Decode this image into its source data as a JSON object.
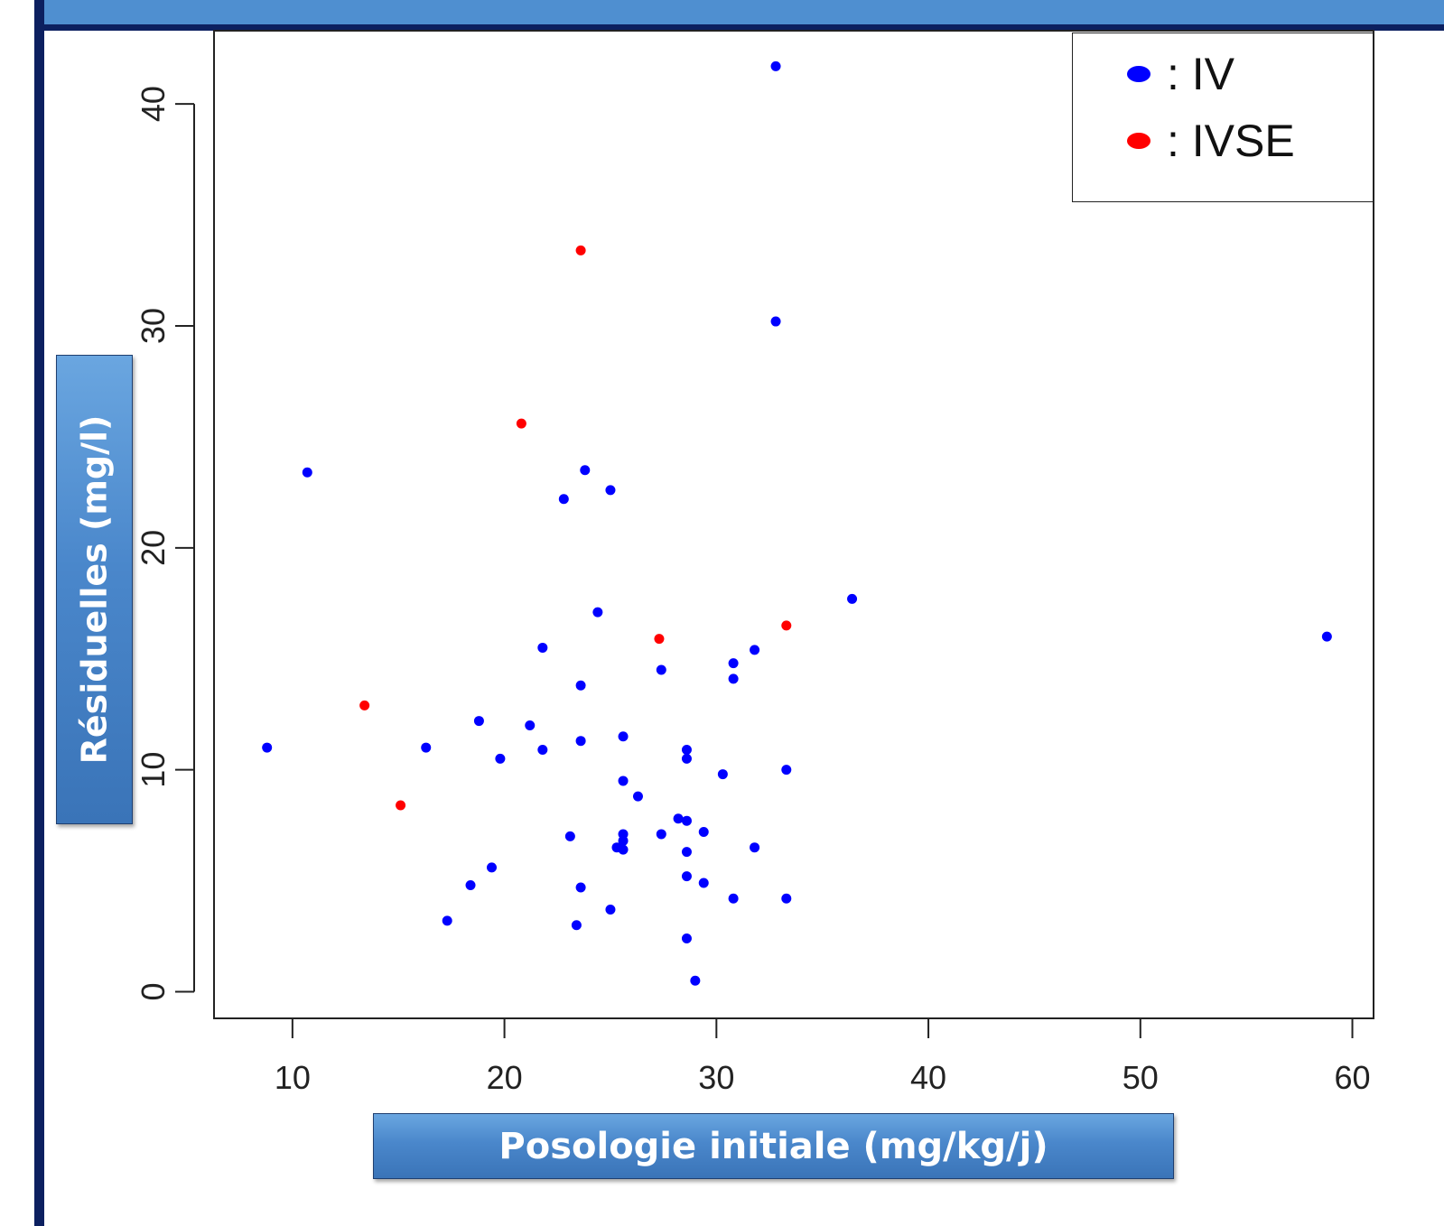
{
  "chart_data": {
    "type": "scatter",
    "xlabel": "Posologie initiale (mg/kg/j)",
    "ylabel": "Résiduelles (mg/l)",
    "xlim": [
      6.3,
      61
    ],
    "ylim": [
      -1.2,
      43.3
    ],
    "xticks": [
      10,
      20,
      30,
      40,
      50,
      60
    ],
    "yticks": [
      0,
      10,
      20,
      30,
      40
    ],
    "grid": false,
    "legend_position": "top-right",
    "series": [
      {
        "name": ": IV",
        "color": "#0000ff",
        "points": [
          [
            32.8,
            41.7
          ],
          [
            32.8,
            30.2
          ],
          [
            10.7,
            23.4
          ],
          [
            23.8,
            23.5
          ],
          [
            25.0,
            22.6
          ],
          [
            22.8,
            22.2
          ],
          [
            36.4,
            17.7
          ],
          [
            58.8,
            16.0
          ],
          [
            24.4,
            17.1
          ],
          [
            21.8,
            15.5
          ],
          [
            31.8,
            15.4
          ],
          [
            30.8,
            14.8
          ],
          [
            27.4,
            14.5
          ],
          [
            30.8,
            14.1
          ],
          [
            23.6,
            13.8
          ],
          [
            18.8,
            12.2
          ],
          [
            21.2,
            12.0
          ],
          [
            8.8,
            11.0
          ],
          [
            16.3,
            11.0
          ],
          [
            21.8,
            10.9
          ],
          [
            23.6,
            11.3
          ],
          [
            25.6,
            11.5
          ],
          [
            28.6,
            10.9
          ],
          [
            28.6,
            10.5
          ],
          [
            19.8,
            10.5
          ],
          [
            30.3,
            9.8
          ],
          [
            33.3,
            10.0
          ],
          [
            25.6,
            9.5
          ],
          [
            26.3,
            8.8
          ],
          [
            28.2,
            7.8
          ],
          [
            28.6,
            7.7
          ],
          [
            29.4,
            7.2
          ],
          [
            27.4,
            7.1
          ],
          [
            25.6,
            7.1
          ],
          [
            25.6,
            6.8
          ],
          [
            23.1,
            7.0
          ],
          [
            25.3,
            6.5
          ],
          [
            25.6,
            6.4
          ],
          [
            28.6,
            6.3
          ],
          [
            31.8,
            6.5
          ],
          [
            19.4,
            5.6
          ],
          [
            18.4,
            4.8
          ],
          [
            23.6,
            4.7
          ],
          [
            28.6,
            5.2
          ],
          [
            29.4,
            4.9
          ],
          [
            30.8,
            4.2
          ],
          [
            33.3,
            4.2
          ],
          [
            25.0,
            3.7
          ],
          [
            17.3,
            3.2
          ],
          [
            23.4,
            3.0
          ],
          [
            28.6,
            2.4
          ],
          [
            29.0,
            0.5
          ]
        ]
      },
      {
        "name": ": IVSE",
        "color": "#ff0000",
        "points": [
          [
            23.6,
            33.4
          ],
          [
            20.8,
            25.6
          ],
          [
            33.3,
            16.5
          ],
          [
            27.3,
            15.9
          ],
          [
            13.4,
            12.9
          ],
          [
            15.1,
            8.4
          ]
        ]
      }
    ]
  }
}
